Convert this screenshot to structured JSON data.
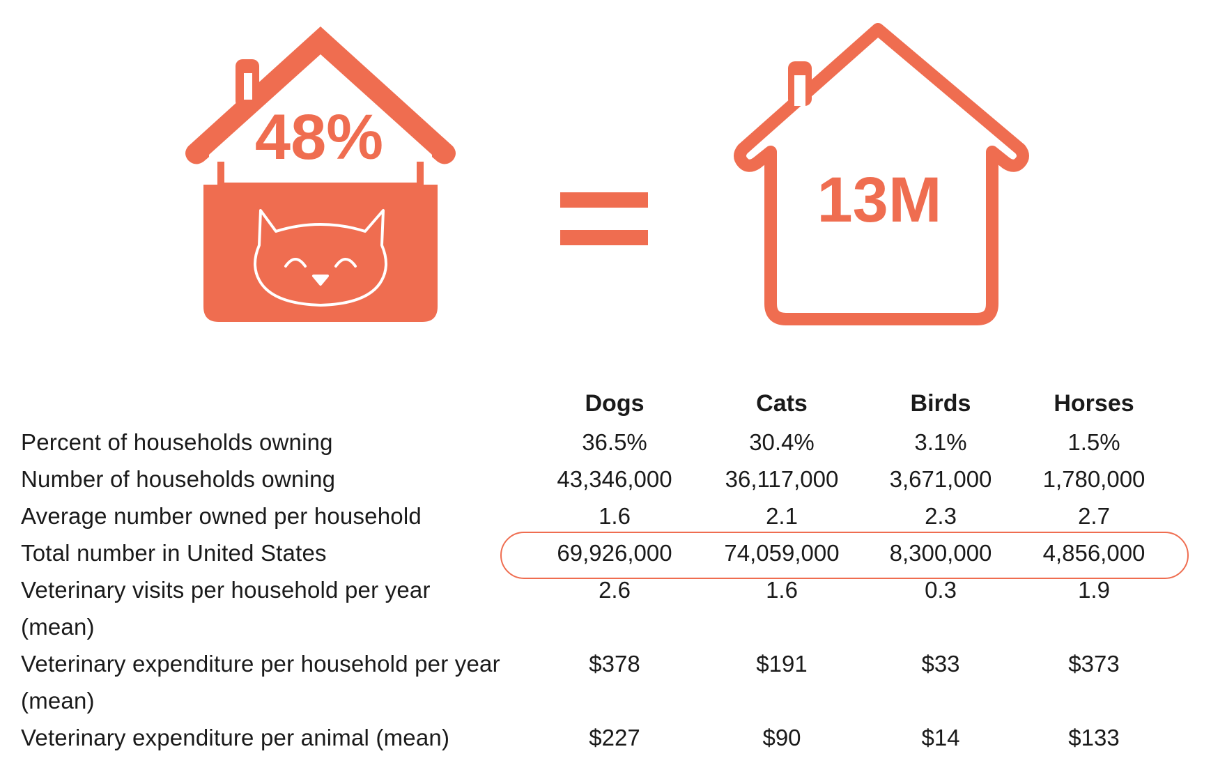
{
  "colors": {
    "accent": "#ef6d50",
    "text": "#1a1a1a"
  },
  "graphic": {
    "left_house_value": "48%",
    "equals_icon": "equals-icon",
    "right_house_value": "13M",
    "left_house_icon": "cat-house-icon",
    "right_house_icon": "house-outline-icon"
  },
  "chart_data": {
    "type": "table",
    "columns": [
      "Dogs",
      "Cats",
      "Birds",
      "Horses"
    ],
    "rows": [
      {
        "label": "Percent of households owning",
        "values": [
          "36.5%",
          "30.4%",
          "3.1%",
          "1.5%"
        ]
      },
      {
        "label": "Number of households owning",
        "values": [
          "43,346,000",
          "36,117,000",
          "3,671,000",
          "1,780,000"
        ]
      },
      {
        "label": "Average number owned per household",
        "values": [
          "1.6",
          "2.1",
          "2.3",
          "2.7"
        ]
      },
      {
        "label": "Total number in United States",
        "values": [
          "69,926,000",
          "74,059,000",
          "8,300,000",
          "4,856,000"
        ],
        "highlighted": true
      },
      {
        "label": "Veterinary visits per household per year (mean)",
        "values": [
          "2.6",
          "1.6",
          "0.3",
          "1.9"
        ]
      },
      {
        "label": "Veterinary expenditure per household per year (mean)",
        "values": [
          "$378",
          "$191",
          "$33",
          "$373"
        ]
      },
      {
        "label": "Veterinary expenditure per animal (mean)",
        "values": [
          "$227",
          "$90",
          "$14",
          "$133"
        ]
      }
    ]
  }
}
